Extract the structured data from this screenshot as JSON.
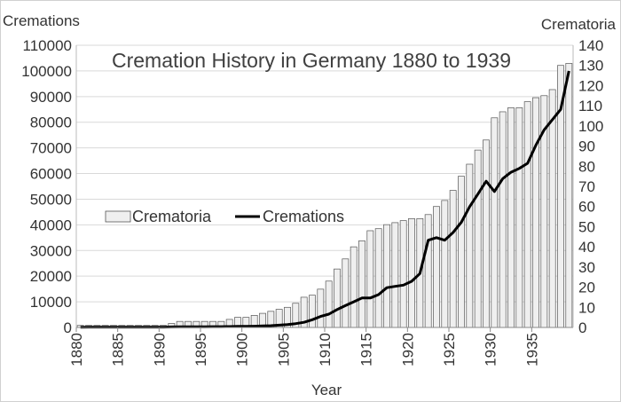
{
  "chart_data": {
    "type": "bar+line",
    "title": "Cremation History in Germany 1880 to 1939",
    "xlabel": "Year",
    "y_left_label": "Cremations",
    "y_right_label": "Crematoria",
    "x_tick_labels": [
      "1880",
      "1885",
      "1890",
      "1895",
      "1900",
      "1905",
      "1910",
      "1915",
      "1920",
      "1925",
      "1930",
      "1935"
    ],
    "y_left_ticks": [
      "0",
      "10000",
      "20000",
      "30000",
      "40000",
      "50000",
      "60000",
      "70000",
      "80000",
      "90000",
      "100000",
      "110000"
    ],
    "y_right_ticks": [
      "0",
      "10",
      "20",
      "30",
      "40",
      "50",
      "60",
      "70",
      "80",
      "90",
      "100",
      "110",
      "120",
      "130",
      "140"
    ],
    "y_left_lim": [
      0,
      110000
    ],
    "y_right_lim": [
      0,
      140
    ],
    "grid": "horizontal",
    "legend_position": "middle-left",
    "years": [
      1880,
      1881,
      1882,
      1883,
      1884,
      1885,
      1886,
      1887,
      1888,
      1889,
      1890,
      1891,
      1892,
      1893,
      1894,
      1895,
      1896,
      1897,
      1898,
      1899,
      1900,
      1901,
      1902,
      1903,
      1904,
      1905,
      1906,
      1907,
      1908,
      1909,
      1910,
      1911,
      1912,
      1913,
      1914,
      1915,
      1916,
      1917,
      1918,
      1919,
      1920,
      1921,
      1922,
      1923,
      1924,
      1925,
      1926,
      1927,
      1928,
      1929,
      1930,
      1931,
      1932,
      1933,
      1934,
      1935,
      1936,
      1937,
      1938,
      1939
    ],
    "series": [
      {
        "name": "Crematoria",
        "type": "bar",
        "axis": "right",
        "color": "#efefef",
        "values": [
          1,
          1,
          1,
          1,
          1,
          1,
          1,
          1,
          1,
          1,
          1,
          2,
          3,
          3,
          3,
          3,
          3,
          3,
          4,
          5,
          5,
          6,
          7,
          8,
          9,
          10,
          12,
          15,
          16,
          19,
          23,
          29,
          34,
          40,
          43,
          48,
          49,
          51,
          52,
          53,
          54,
          54,
          56,
          60,
          63,
          68,
          75,
          81,
          88,
          93,
          104,
          107,
          109,
          109,
          112,
          114,
          115,
          118,
          130,
          131
        ]
      },
      {
        "name": "Cremations",
        "type": "line",
        "axis": "left",
        "color": "#000000",
        "values": [
          100,
          150,
          150,
          150,
          150,
          150,
          150,
          150,
          150,
          150,
          150,
          200,
          250,
          250,
          250,
          250,
          300,
          300,
          350,
          400,
          450,
          500,
          600,
          700,
          900,
          1100,
          1500,
          2000,
          3000,
          4300,
          5200,
          7000,
          8500,
          10000,
          11500,
          11500,
          12800,
          15500,
          16000,
          16500,
          18000,
          21000,
          34000,
          35000,
          34000,
          37000,
          41000,
          47000,
          52000,
          57000,
          53000,
          58000,
          60500,
          62000,
          64000,
          71000,
          77000,
          81000,
          85000,
          100000
        ]
      }
    ]
  }
}
